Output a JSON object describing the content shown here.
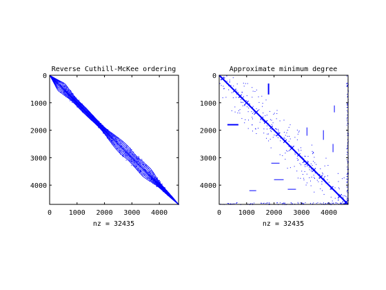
{
  "figure": {
    "background": "#ffffff",
    "marker_color": "#0000ff",
    "axes_color": "#000000"
  },
  "chart_data": [
    {
      "type": "scatter",
      "subtype": "sparsity-pattern",
      "title": "Reverse Cuthill-McKee ordering",
      "xlabel": "nz = 32435",
      "ylabel": "",
      "xlim": [
        0,
        4700
      ],
      "ylim": [
        4700,
        0
      ],
      "y_reversed": true,
      "xticks": [
        0,
        1000,
        2000,
        3000,
        4000
      ],
      "yticks": [
        0,
        1000,
        2000,
        3000,
        4000
      ],
      "grid": false,
      "nz": 32435,
      "pattern": {
        "kind": "band",
        "diagonal": true,
        "envelope": [
          [
            0,
            0
          ],
          [
            300,
            250
          ],
          [
            600,
            220
          ],
          [
            1000,
            160
          ],
          [
            1400,
            120
          ],
          [
            1800,
            130
          ],
          [
            2200,
            220
          ],
          [
            2600,
            300
          ],
          [
            3000,
            330
          ],
          [
            3400,
            280
          ],
          [
            3800,
            180
          ],
          [
            4200,
            90
          ],
          [
            4700,
            0
          ]
        ]
      }
    },
    {
      "type": "scatter",
      "subtype": "sparsity-pattern",
      "title": "Approximate minimum degree",
      "xlabel": "nz = 32435",
      "ylabel": "",
      "xlim": [
        0,
        4700
      ],
      "ylim": [
        4700,
        0
      ],
      "y_reversed": true,
      "xticks": [
        0,
        1000,
        2000,
        3000,
        4000
      ],
      "yticks": [
        0,
        1000,
        2000,
        3000,
        4000
      ],
      "grid": false,
      "nz": 32435,
      "pattern": {
        "kind": "blocked-diagonal",
        "diagonal": true,
        "blocks": [
          [
            120,
            60
          ],
          [
            560,
            55
          ],
          [
            760,
            60
          ],
          [
            1000,
            70
          ],
          [
            1350,
            80
          ],
          [
            1560,
            50
          ],
          [
            1700,
            60
          ],
          [
            1900,
            55
          ],
          [
            2150,
            70
          ],
          [
            2400,
            60
          ],
          [
            2650,
            80
          ],
          [
            2900,
            55
          ],
          [
            3200,
            60
          ],
          [
            3450,
            70
          ],
          [
            3700,
            60
          ],
          [
            4100,
            60
          ],
          [
            4400,
            70
          ],
          [
            4620,
            80
          ]
        ],
        "border_columns": [
          [
            4640,
            4700,
            0,
            4700
          ]
        ],
        "border_rows": [
          [
            4620,
            4700,
            0,
            4700
          ]
        ],
        "fill_segments": [
          [
            1800,
            300,
            700,
            2
          ],
          [
            3800,
            2000,
            2350,
            1
          ],
          [
            3200,
            1900,
            2200,
            1
          ],
          [
            4200,
            1100,
            1350,
            1
          ],
          [
            4150,
            2500,
            2800,
            1
          ]
        ]
      }
    }
  ]
}
